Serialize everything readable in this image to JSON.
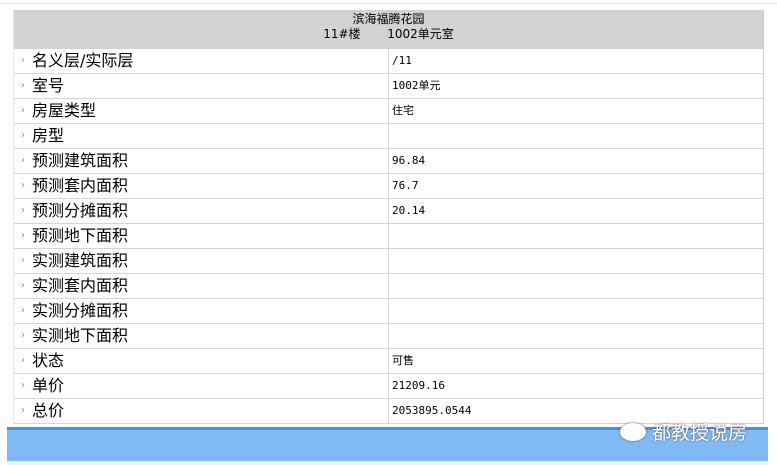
{
  "header": {
    "title": "滨海福腾花园",
    "building": "11#楼",
    "unit": "1002单元室"
  },
  "rows": [
    {
      "label": "名义层/实际层",
      "value": "/11"
    },
    {
      "label": "室号",
      "value": "1002单元"
    },
    {
      "label": "房屋类型",
      "value": "住宅"
    },
    {
      "label": "房型",
      "value": ""
    },
    {
      "label": "预测建筑面积",
      "value": "96.84"
    },
    {
      "label": "预测套内面积",
      "value": "76.7"
    },
    {
      "label": "预测分摊面积",
      "value": "20.14"
    },
    {
      "label": "预测地下面积",
      "value": ""
    },
    {
      "label": "实测建筑面积",
      "value": ""
    },
    {
      "label": "实测套内面积",
      "value": ""
    },
    {
      "label": "实测分摊面积",
      "value": ""
    },
    {
      "label": "实测地下面积",
      "value": ""
    },
    {
      "label": "状态",
      "value": "可售"
    },
    {
      "label": "单价",
      "value": "21209.16"
    },
    {
      "label": "总价",
      "value": "2053895.0544"
    }
  ],
  "row_arrow_icon": "chevron-right-icon",
  "watermark": {
    "text": "都教授说房",
    "icon": "wechat-icon"
  },
  "colors": {
    "header_bg": "#d3d3d3",
    "bar": "#7fbaf5",
    "bar_border": "#4a8fdc"
  }
}
